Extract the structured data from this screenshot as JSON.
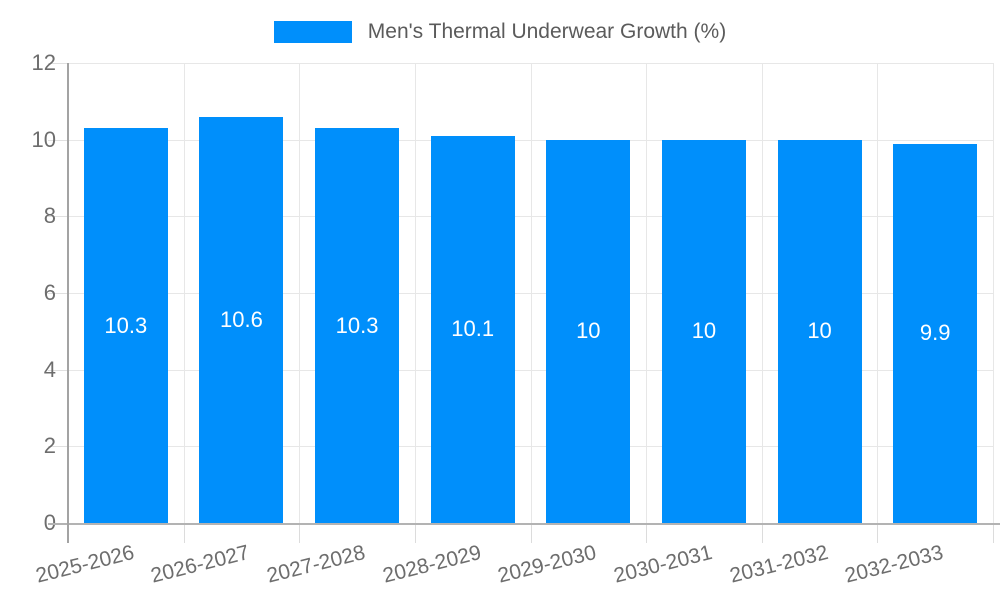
{
  "chart_data": {
    "type": "bar",
    "title": "Men's Thermal Underwear Growth (%)",
    "categories": [
      "2025-2026",
      "2026-2027",
      "2027-2028",
      "2028-2029",
      "2029-2030",
      "2030-2031",
      "2031-2032",
      "2032-2033"
    ],
    "values": [
      10.3,
      10.6,
      10.3,
      10.1,
      10,
      10,
      10,
      9.9
    ],
    "value_labels": [
      "10.3",
      "10.6",
      "10.3",
      "10.1",
      "10",
      "10",
      "10",
      "9.9"
    ],
    "xlabel": "",
    "ylabel": "",
    "ylim": [
      0,
      12
    ],
    "yticks": [
      0,
      2,
      4,
      6,
      8,
      10,
      12
    ],
    "grid": true,
    "legend_position": "top",
    "colors": {
      "bar": "#008FFB",
      "data_label": "#ffffff",
      "axis_label": "#6d6d6d",
      "legend_text": "#5b5b5b",
      "gridline": "#e7e7e7",
      "axis_line": "#b3b3b3",
      "background": "#ffffff"
    }
  }
}
